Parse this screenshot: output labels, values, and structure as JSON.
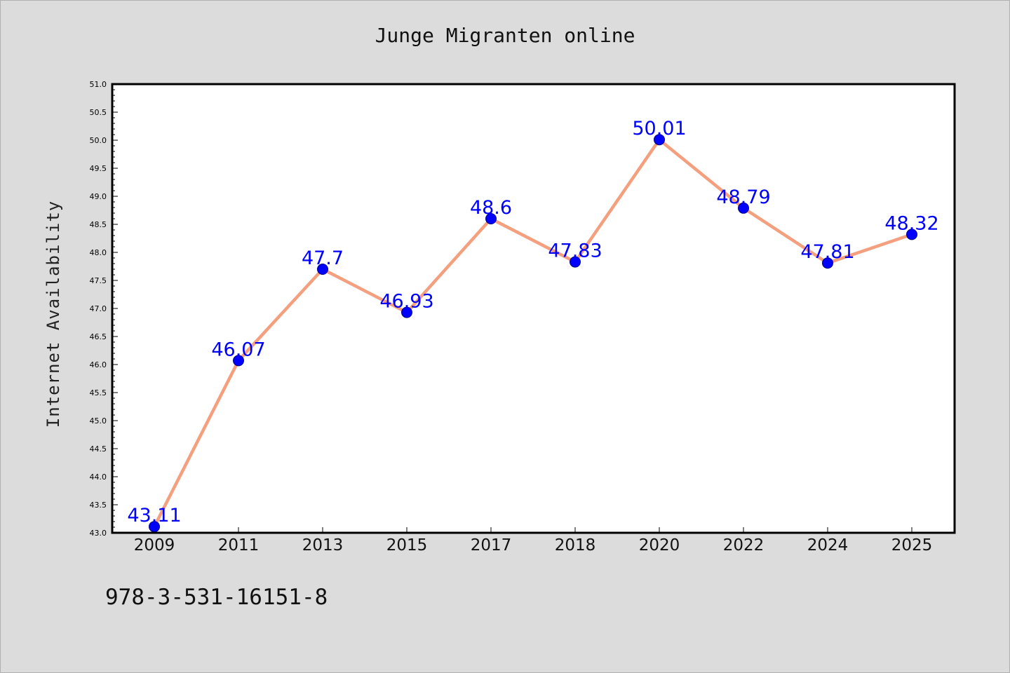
{
  "chart_data": {
    "type": "line",
    "title": "Junge Migranten online",
    "xlabel": "",
    "ylabel": "Internet Availability",
    "categories": [
      "2009",
      "2011",
      "2013",
      "2015",
      "2017",
      "2018",
      "2020",
      "2022",
      "2024",
      "2025"
    ],
    "series": [
      {
        "values": [
          43.11,
          46.07,
          47.7,
          46.93,
          48.6,
          47.83,
          50.01,
          48.79,
          47.81,
          48.32
        ],
        "labels": [
          "43.11",
          "46.07",
          "47.7",
          "46.93",
          "48.6",
          "47.83",
          "50.01",
          "48.79",
          "47.81",
          "48.32"
        ],
        "line_color": "#f4a07e",
        "marker_color": "#0000ff",
        "label_color": "#0000ff"
      }
    ],
    "ylim": [
      43.0,
      51.0
    ],
    "yticks": [
      "43.0",
      "43.5",
      "44.0",
      "44.5",
      "45.0",
      "45.5",
      "46.0",
      "46.5",
      "47.0",
      "47.5",
      "48.0",
      "48.5",
      "49.0",
      "49.5",
      "50.0",
      "50.5",
      "51.0"
    ],
    "grid": false,
    "legend": "none"
  },
  "footer": {
    "isbn": "978-3-531-16151-8"
  }
}
